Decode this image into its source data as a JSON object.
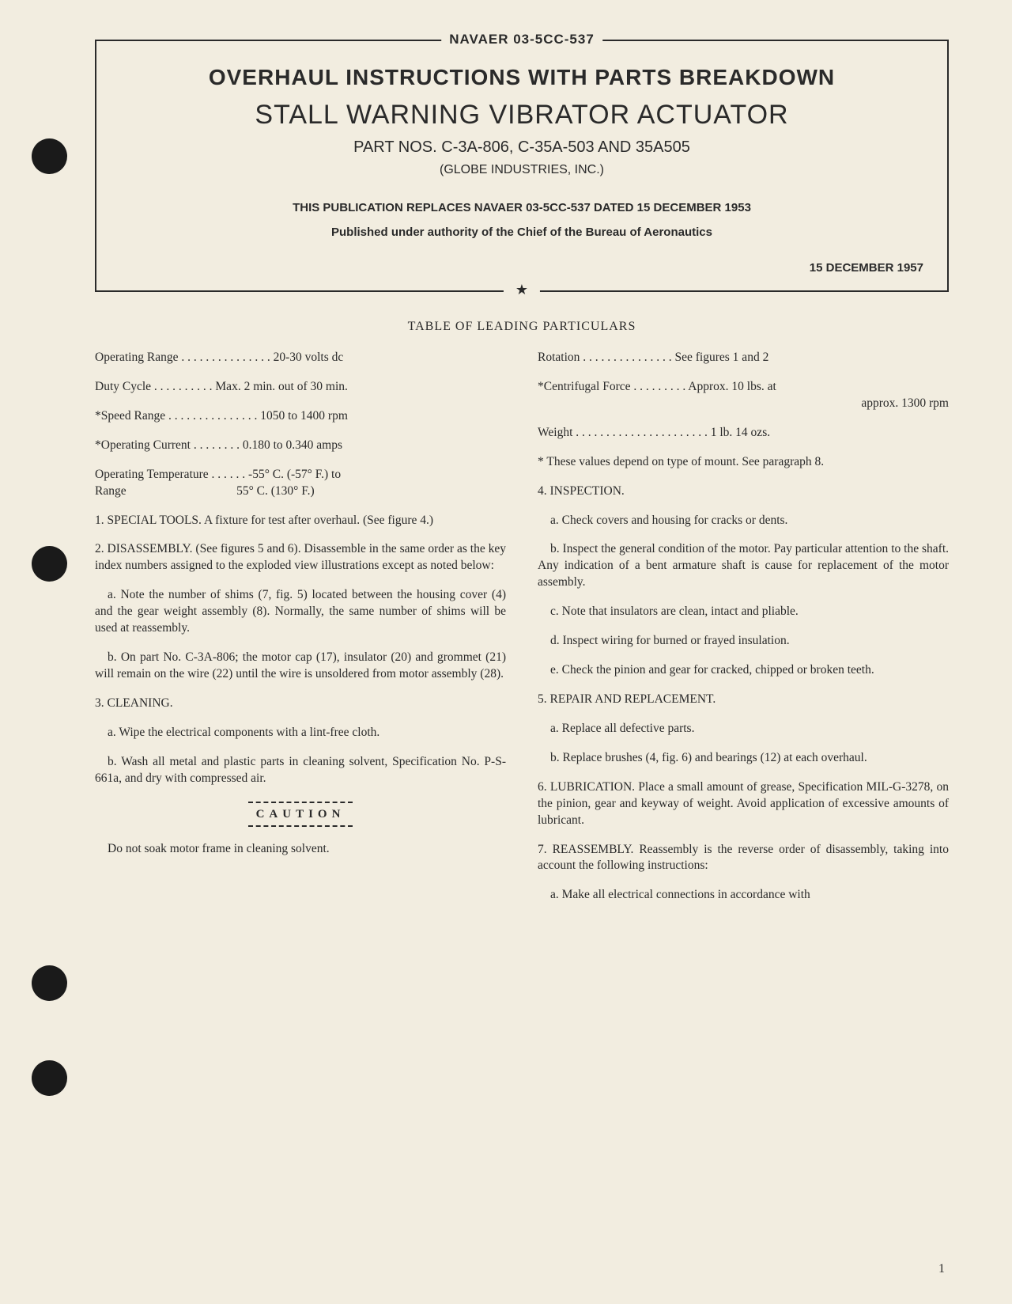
{
  "header": {
    "doc_number": "NAVAER 03-5CC-537",
    "title_main": "OVERHAUL INSTRUCTIONS WITH PARTS BREAKDOWN",
    "title_sub": "STALL WARNING VIBRATOR ACTUATOR",
    "part_nos": "PART NOS. C-3A-806, C-35A-503 AND 35A505",
    "company": "(GLOBE INDUSTRIES, INC.)",
    "replaces": "THIS PUBLICATION REPLACES NAVAER 03-5CC-537 DATED 15 DECEMBER 1953",
    "published": "Published under authority of the Chief of the Bureau of Aeronautics",
    "date": "15 DECEMBER 1957",
    "star": "★"
  },
  "table_title": "TABLE OF LEADING PARTICULARS",
  "specs_left": {
    "operating_range": "Operating Range . . . . . . . . . . . . . . . 20-30 volts dc",
    "duty_cycle": "Duty Cycle . . . . . . . . . . Max. 2 min. out of 30 min.",
    "speed_range": "*Speed Range . . . . . . . . . . . . . . . 1050 to 1400 rpm",
    "operating_current": "*Operating Current . . . . . . . . 0.180 to 0.340 amps",
    "operating_temp_1": "Operating Temperature . . . . . . -55° C. (-57° F.) to",
    "operating_temp_2": "Range                                    55° C. (130° F.)"
  },
  "specs_right": {
    "rotation": "Rotation . . . . . . . . . . . . . . . See figures 1 and 2",
    "centrifugal_1": "*Centrifugal Force . . . . . . . . . Approx. 10 lbs. at",
    "centrifugal_2": "approx. 1300 rpm",
    "weight": "Weight . . . . . . . . . . . . . . . . . . . . . . 1 lb. 14 ozs.",
    "footnote": "* These values depend on type of mount. See paragraph 8."
  },
  "body_left": {
    "p1": "1. SPECIAL TOOLS. A fixture for test after overhaul. (See figure 4.)",
    "p2": "2. DISASSEMBLY. (See figures 5 and 6). Disassemble in the same order as the key index numbers assigned to the exploded view illustrations except as noted below:",
    "p2a": "a. Note the number of shims (7, fig. 5) located between the housing cover (4) and the gear weight assembly (8). Normally, the same number of shims will be used at reassembly.",
    "p2b": "b. On part No. C-3A-806; the motor cap (17), insulator (20) and grommet (21) will remain on the wire (22) until the wire is unsoldered from motor assembly (28).",
    "p3": "3. CLEANING.",
    "p3a": "a. Wipe the electrical components with a lint-free cloth.",
    "p3b": "b. Wash all metal and plastic parts in cleaning solvent, Specification No. P-S-661a, and dry with compressed air.",
    "caution_label": "CAUTION",
    "caution_text": "Do not soak motor frame in cleaning solvent."
  },
  "body_right": {
    "p4": "4. INSPECTION.",
    "p4a": "a. Check covers and housing for cracks or dents.",
    "p4b": "b. Inspect the general condition of the motor. Pay particular attention to the shaft. Any indication of a bent armature shaft is cause for replacement of the motor assembly.",
    "p4c": "c. Note that insulators are clean, intact and pliable.",
    "p4d": "d. Inspect wiring for burned or frayed insulation.",
    "p4e": "e. Check the pinion and gear for cracked, chipped or broken teeth.",
    "p5": "5. REPAIR AND REPLACEMENT.",
    "p5a": "a. Replace all defective parts.",
    "p5b": "b. Replace brushes (4, fig. 6) and bearings (12) at each overhaul.",
    "p6": "6. LUBRICATION. Place a small amount of grease, Specification MIL-G-3278, on the pinion, gear and keyway of weight. Avoid application of excessive amounts of lubricant.",
    "p7": "7. REASSEMBLY. Reassembly is the reverse order of disassembly, taking into account the following instructions:",
    "p7a": "a. Make all electrical connections in accordance with"
  },
  "page_num": "1"
}
